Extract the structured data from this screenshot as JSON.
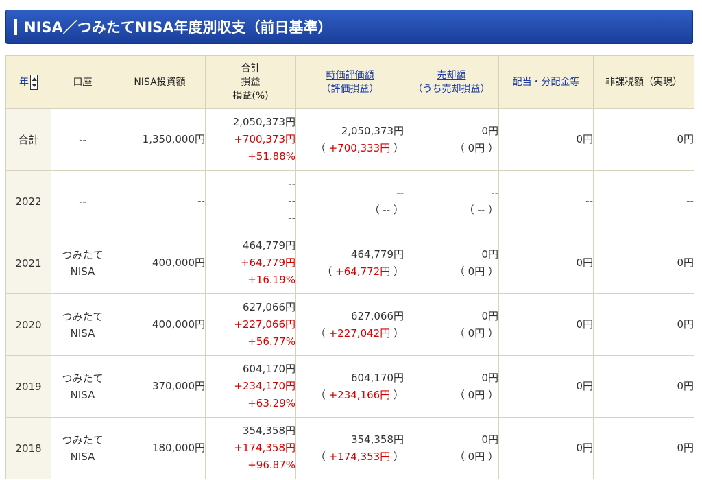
{
  "header": {
    "title": "NISA／つみたてNISA年度別収支（前日基準）"
  },
  "columns": {
    "year": "年",
    "account": "口座",
    "invest": "NISA投資額",
    "total_l1": "合計",
    "total_l2": "損益",
    "total_l3": "損益(%)",
    "market_l1": "時価評価額",
    "market_l2": "（評価損益）",
    "sale_l1": "売却額",
    "sale_l2": "（うち売却損益）",
    "dividend": "配当・分配金等",
    "taxfree": "非課税額（実現）"
  },
  "rows": [
    {
      "year": "合計",
      "account": "--",
      "invest": "1,350,000円",
      "total": "2,050,373円",
      "gain": "+700,373円",
      "pct": "+51.88%",
      "market": "2,050,373円",
      "market_gain": "（ +700,333円 ）",
      "sale": "0円",
      "sale_gain": "（ 0円 ）",
      "dividend": "0円",
      "taxfree": "0円"
    },
    {
      "year": "2022",
      "account": "--",
      "invest": "--",
      "total": "--",
      "gain": "--",
      "pct": "--",
      "market": "--",
      "market_gain": "（ -- ）",
      "sale": "--",
      "sale_gain": "（ -- ）",
      "dividend": "--",
      "taxfree": "--"
    },
    {
      "year": "2021",
      "account": "つみたて",
      "account2": "NISA",
      "invest": "400,000円",
      "total": "464,779円",
      "gain": "+64,779円",
      "pct": "+16.19%",
      "market": "464,779円",
      "market_gain": "（ +64,772円 ）",
      "sale": "0円",
      "sale_gain": "（ 0円 ）",
      "dividend": "0円",
      "taxfree": "0円"
    },
    {
      "year": "2020",
      "account": "つみたて",
      "account2": "NISA",
      "invest": "400,000円",
      "total": "627,066円",
      "gain": "+227,066円",
      "pct": "+56.77%",
      "market": "627,066円",
      "market_gain": "（ +227,042円 ）",
      "sale": "0円",
      "sale_gain": "（ 0円 ）",
      "dividend": "0円",
      "taxfree": "0円"
    },
    {
      "year": "2019",
      "account": "つみたて",
      "account2": "NISA",
      "invest": "370,000円",
      "total": "604,170円",
      "gain": "+234,170円",
      "pct": "+63.29%",
      "market": "604,170円",
      "market_gain": "（ +234,166円 ）",
      "sale": "0円",
      "sale_gain": "（ 0円 ）",
      "dividend": "0円",
      "taxfree": "0円"
    },
    {
      "year": "2018",
      "account": "つみたて",
      "account2": "NISA",
      "invest": "180,000円",
      "total": "354,358円",
      "gain": "+174,358円",
      "pct": "+96.87%",
      "market": "354,358円",
      "market_gain": "（ +174,353円 ）",
      "sale": "0円",
      "sale_gain": "（ 0円 ）",
      "dividend": "0円",
      "taxfree": "0円"
    }
  ],
  "colors": {
    "header_bg": "#1f48ad",
    "th_bg": "#f5f0d6",
    "gain": "#d60000",
    "link": "#1a3aa8"
  }
}
